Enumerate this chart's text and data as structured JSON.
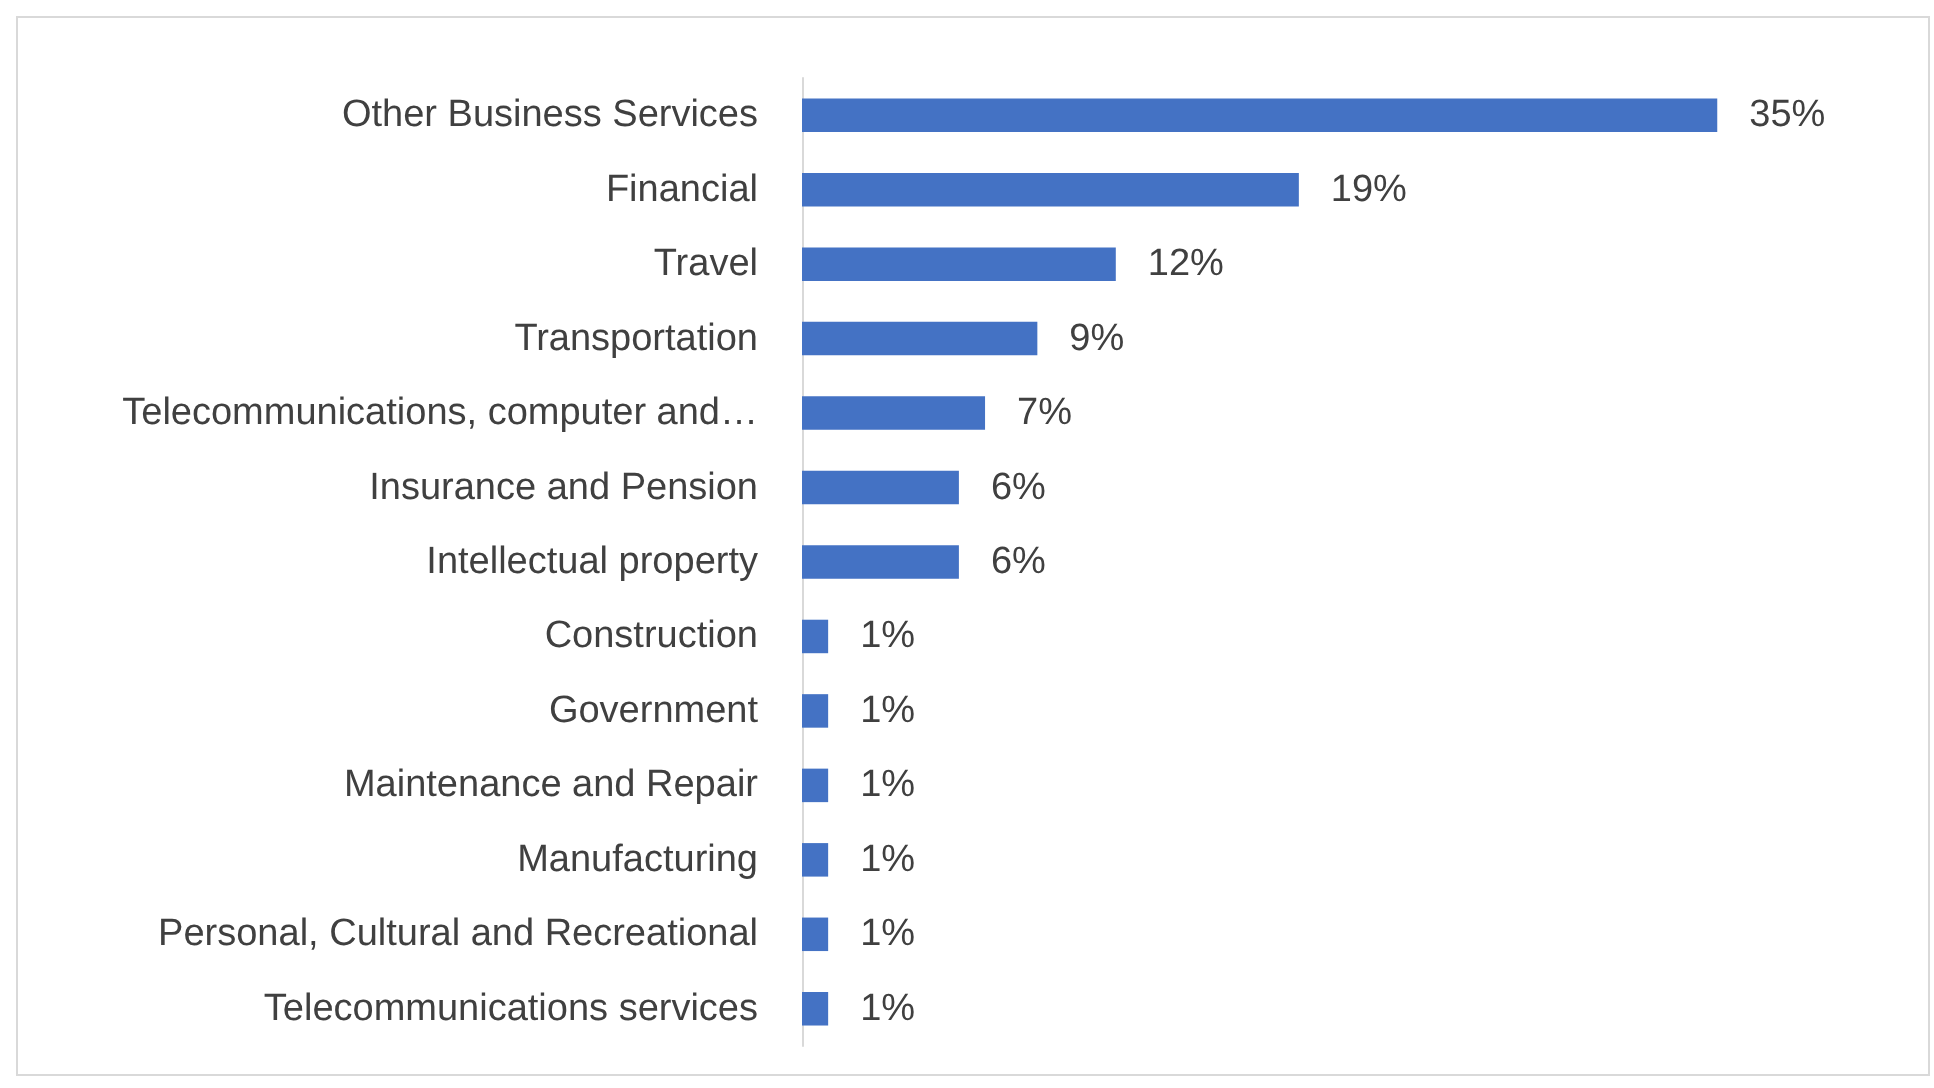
{
  "chart_data": {
    "type": "bar",
    "orientation": "horizontal",
    "categories": [
      "Other Business Services",
      "Financial",
      "Travel",
      "Transportation",
      "Telecommunications, computer and…",
      "Insurance and Pension",
      "Intellectual property",
      "Construction",
      "Government",
      "Maintenance and Repair",
      "Manufacturing",
      "Personal, Cultural and Recreational",
      "Telecommunications services"
    ],
    "values": [
      35,
      19,
      12,
      9,
      7,
      6,
      6,
      1,
      1,
      1,
      1,
      1,
      1
    ],
    "value_labels": [
      "35%",
      "19%",
      "12%",
      "9%",
      "7%",
      "6%",
      "6%",
      "1%",
      "1%",
      "1%",
      "1%",
      "1%",
      "1%"
    ],
    "color": "#4472c4"
  }
}
